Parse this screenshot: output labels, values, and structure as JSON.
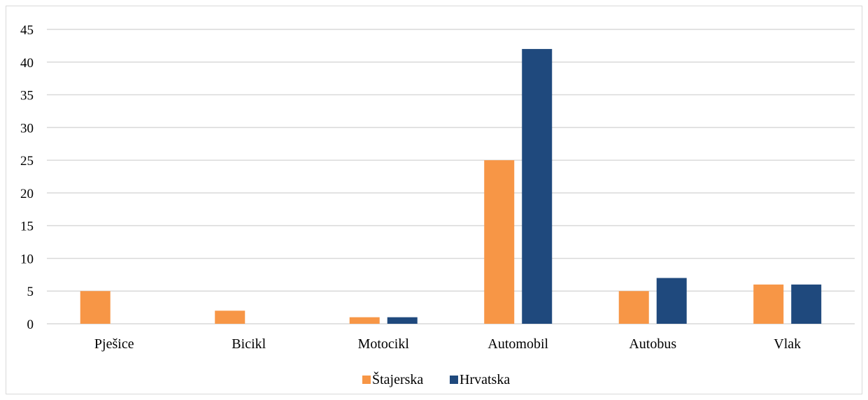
{
  "chart_data": {
    "type": "bar",
    "categories": [
      "Pješice",
      "Bicikl",
      "Motocikl",
      "Automobil",
      "Autobus",
      "Vlak"
    ],
    "series": [
      {
        "name": "Štajerska",
        "color": "#f79646",
        "values": [
          5,
          2,
          1,
          25,
          5,
          6
        ]
      },
      {
        "name": "Hrvatska",
        "color": "#1f497d",
        "values": [
          0,
          0,
          1,
          42,
          7,
          6
        ]
      }
    ],
    "ylim": [
      0,
      45
    ],
    "yticks": [
      0,
      5,
      10,
      15,
      20,
      25,
      30,
      35,
      40,
      45
    ],
    "grid": true,
    "gridColor": "#d9d9d9",
    "legend": "bottom"
  }
}
